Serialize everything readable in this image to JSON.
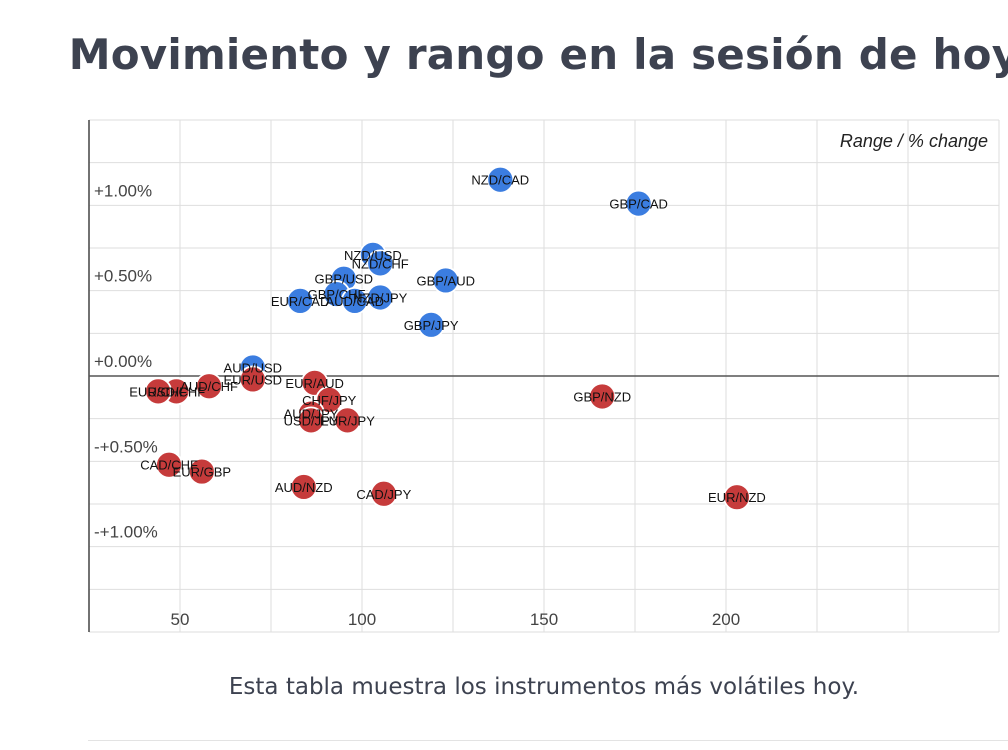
{
  "title": "Movimiento y rango en la sesión de hoy",
  "caption": "Esta tabla muestra los instrumentos más volátiles hoy.",
  "chart_data": {
    "type": "scatter",
    "corner_label": "Range / % change",
    "x_ticks": [
      {
        "value": 50,
        "label": "50"
      },
      {
        "value": 100,
        "label": "100"
      },
      {
        "value": 150,
        "label": "150"
      },
      {
        "value": 200,
        "label": "200"
      }
    ],
    "y_ticks": [
      {
        "value": 1.0,
        "label": "+1.00%"
      },
      {
        "value": 0.5,
        "label": "+0.50%"
      },
      {
        "value": 0.0,
        "label": "+0.00%"
      },
      {
        "value": -0.5,
        "label": "-+0.50%"
      },
      {
        "value": -1.0,
        "label": "-+1.00%"
      }
    ],
    "xlim": [
      25,
      275
    ],
    "ylim": [
      -1.5,
      1.5
    ],
    "grid": true,
    "colors": {
      "positive": "#3b7de0",
      "negative": "#c63b3b"
    },
    "points": [
      {
        "label": "NZD/CAD",
        "x": 138,
        "y": 1.15
      },
      {
        "label": "GBP/CAD",
        "x": 176,
        "y": 1.01
      },
      {
        "label": "NZD/USD",
        "x": 103,
        "y": 0.71
      },
      {
        "label": "NZD/CHF",
        "x": 105,
        "y": 0.66
      },
      {
        "label": "GBP/USD",
        "x": 95,
        "y": 0.57
      },
      {
        "label": "GBP/AUD",
        "x": 123,
        "y": 0.56
      },
      {
        "label": "GBP/CHF",
        "x": 93,
        "y": 0.48
      },
      {
        "label": "NZD/JPY",
        "x": 105,
        "y": 0.46
      },
      {
        "label": "AUD/CAD",
        "x": 98,
        "y": 0.44
      },
      {
        "label": "EUR/CAD",
        "x": 83,
        "y": 0.44
      },
      {
        "label": "GBP/JPY",
        "x": 119,
        "y": 0.3
      },
      {
        "label": "AUD/USD",
        "x": 70,
        "y": 0.05
      },
      {
        "label": "EUR/USD",
        "x": 70,
        "y": -0.02
      },
      {
        "label": "EUR/AUD",
        "x": 87,
        "y": -0.04
      },
      {
        "label": "AUD/CHF",
        "x": 58,
        "y": -0.06
      },
      {
        "label": "USD/CHF",
        "x": 49,
        "y": -0.09
      },
      {
        "label": "EUR/CHF",
        "x": 44,
        "y": -0.09
      },
      {
        "label": "GBP/NZD",
        "x": 166,
        "y": -0.12
      },
      {
        "label": "CHF/JPY",
        "x": 91,
        "y": -0.14
      },
      {
        "label": "AUD/JPY",
        "x": 86,
        "y": -0.22
      },
      {
        "label": "USD/JPY",
        "x": 86,
        "y": -0.26
      },
      {
        "label": "EUR/JPY",
        "x": 96,
        "y": -0.26
      },
      {
        "label": "CAD/CHF",
        "x": 47,
        "y": -0.52
      },
      {
        "label": "EUR/GBP",
        "x": 56,
        "y": -0.56
      },
      {
        "label": "AUD/NZD",
        "x": 84,
        "y": -0.65
      },
      {
        "label": "CAD/JPY",
        "x": 106,
        "y": -0.69
      },
      {
        "label": "EUR/NZD",
        "x": 203,
        "y": -0.71
      }
    ]
  }
}
